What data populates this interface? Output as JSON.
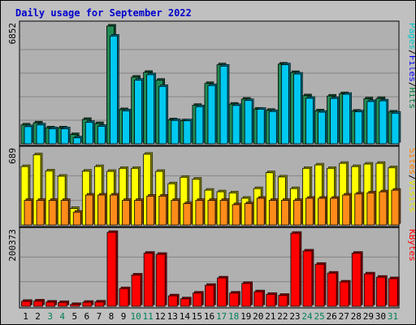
{
  "title": "Daily usage for September 2022",
  "chart_data": {
    "type": "bar",
    "categories": [
      "1",
      "2",
      "3",
      "4",
      "5",
      "6",
      "7",
      "8",
      "9",
      "10",
      "11",
      "12",
      "13",
      "14",
      "15",
      "16",
      "17",
      "18",
      "19",
      "20",
      "21",
      "22",
      "23",
      "24",
      "25",
      "26",
      "27",
      "28",
      "29",
      "30",
      "31"
    ],
    "weekend_days": [
      "3",
      "4",
      "10",
      "11",
      "17",
      "18",
      "24",
      "25",
      "31"
    ],
    "panels": [
      {
        "id": "hits-files-pages",
        "max_label": "6852",
        "ylim": [
          0,
          6852
        ],
        "legend": [
          {
            "text": "Pages",
            "color": "#00c8c8"
          },
          {
            "text": "/",
            "color": "#000000"
          },
          {
            "text": "Files",
            "color": "#0000ff"
          },
          {
            "text": "/",
            "color": "#000000"
          },
          {
            "text": "Hits",
            "color": "#008040"
          }
        ],
        "series": [
          {
            "name": "Hits",
            "color": "#228b55",
            "values": [
              1100,
              1220,
              930,
              930,
              540,
              1420,
              1180,
              6852,
              1990,
              3880,
              4160,
              3700,
              1400,
              1340,
              2240,
              3510,
              4600,
              2310,
              2600,
              2020,
              1950,
              4640,
              4150,
              2800,
              1920,
              2780,
              2920,
              1900,
              2620,
              2640,
              1850
            ]
          },
          {
            "name": "Files",
            "color": "#00c8f0",
            "values": [
              1000,
              1100,
              880,
              880,
              350,
              1250,
              1020,
              6270,
              1920,
              3700,
              4020,
              3340,
              1360,
              1340,
              2160,
              3390,
              4520,
              2230,
              2520,
              2010,
              1880,
              4600,
              4060,
              2650,
              1840,
              2640,
              2880,
              1860,
              2460,
              2500,
              1780
            ]
          }
        ]
      },
      {
        "id": "visits-sites",
        "max_label": "689",
        "ylim": [
          0,
          689
        ],
        "legend": [
          {
            "text": "Sites",
            "color": "#ff8000"
          },
          {
            "text": "/",
            "color": "#000000"
          },
          {
            "text": "Visits",
            "color": "#e8e800"
          }
        ],
        "series": [
          {
            "name": "Visits",
            "color": "#ffff00",
            "values": [
              545,
              655,
              505,
              455,
              155,
              502,
              545,
              500,
              528,
              528,
              660,
              500,
              385,
              445,
              428,
              325,
              310,
              300,
              250,
              340,
              488,
              448,
              340,
              528,
              560,
              528,
              575,
              545,
              568,
              575,
              535
            ]
          },
          {
            "name": "Sites",
            "color": "#ff8c1a",
            "values": [
              230,
              230,
              230,
              230,
              120,
              280,
              280,
              280,
              230,
              230,
              270,
              270,
              230,
              200,
              230,
              230,
              230,
              190,
              200,
              250,
              230,
              230,
              230,
              250,
              250,
              250,
              280,
              290,
              300,
              310,
              325
            ]
          }
        ]
      },
      {
        "id": "kbytes",
        "max_label": "200373",
        "ylim": [
          0,
          200373
        ],
        "legend": [
          {
            "text": "KBytes",
            "color": "#ff0000"
          }
        ],
        "series": [
          {
            "name": "KBytes",
            "color": "#ff0000",
            "values": [
              13500,
              14500,
              11500,
              10500,
              5000,
              11000,
              11800,
              200373,
              48000,
              85000,
              144000,
              141000,
              28500,
              20500,
              36000,
              57000,
              77000,
              36000,
              62000,
              39500,
              32500,
              30000,
              198000,
              150000,
              114000,
              90000,
              66000,
              144000,
              88000,
              79000,
              75000
            ]
          }
        ]
      }
    ]
  }
}
